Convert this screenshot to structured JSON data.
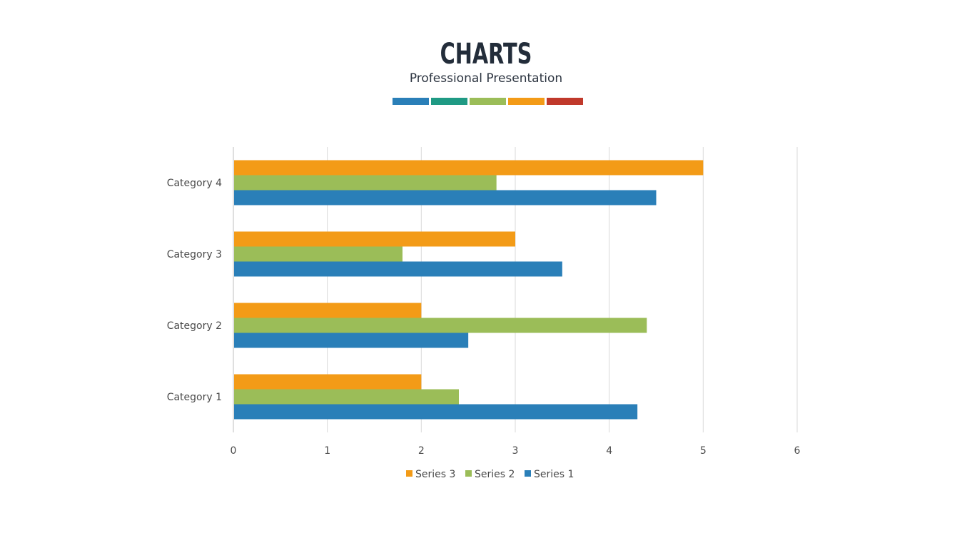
{
  "header": {
    "title": "CHARTS",
    "subtitle": "Professional Presentation"
  },
  "palette": [
    "#2a7fb8",
    "#1f9a84",
    "#9bbd58",
    "#f39b17",
    "#c0392b"
  ],
  "chart_data": {
    "type": "bar",
    "orientation": "horizontal",
    "categories": [
      "Category 1",
      "Category 2",
      "Category 3",
      "Category 4"
    ],
    "series": [
      {
        "name": "Series 1",
        "color": "#2a7fb8",
        "values": [
          4.3,
          2.5,
          3.5,
          4.5
        ]
      },
      {
        "name": "Series 2",
        "color": "#9bbd58",
        "values": [
          2.4,
          4.4,
          1.8,
          2.8
        ]
      },
      {
        "name": "Series 3",
        "color": "#f39b17",
        "values": [
          2,
          2,
          3,
          5
        ]
      }
    ],
    "xlim": [
      0,
      6
    ],
    "xticks": [
      "0",
      "1",
      "2",
      "3",
      "4",
      "5",
      "6"
    ],
    "grid": true,
    "legend": {
      "placement": "bottom",
      "order": [
        "Series 3",
        "Series 2",
        "Series 1"
      ]
    }
  }
}
